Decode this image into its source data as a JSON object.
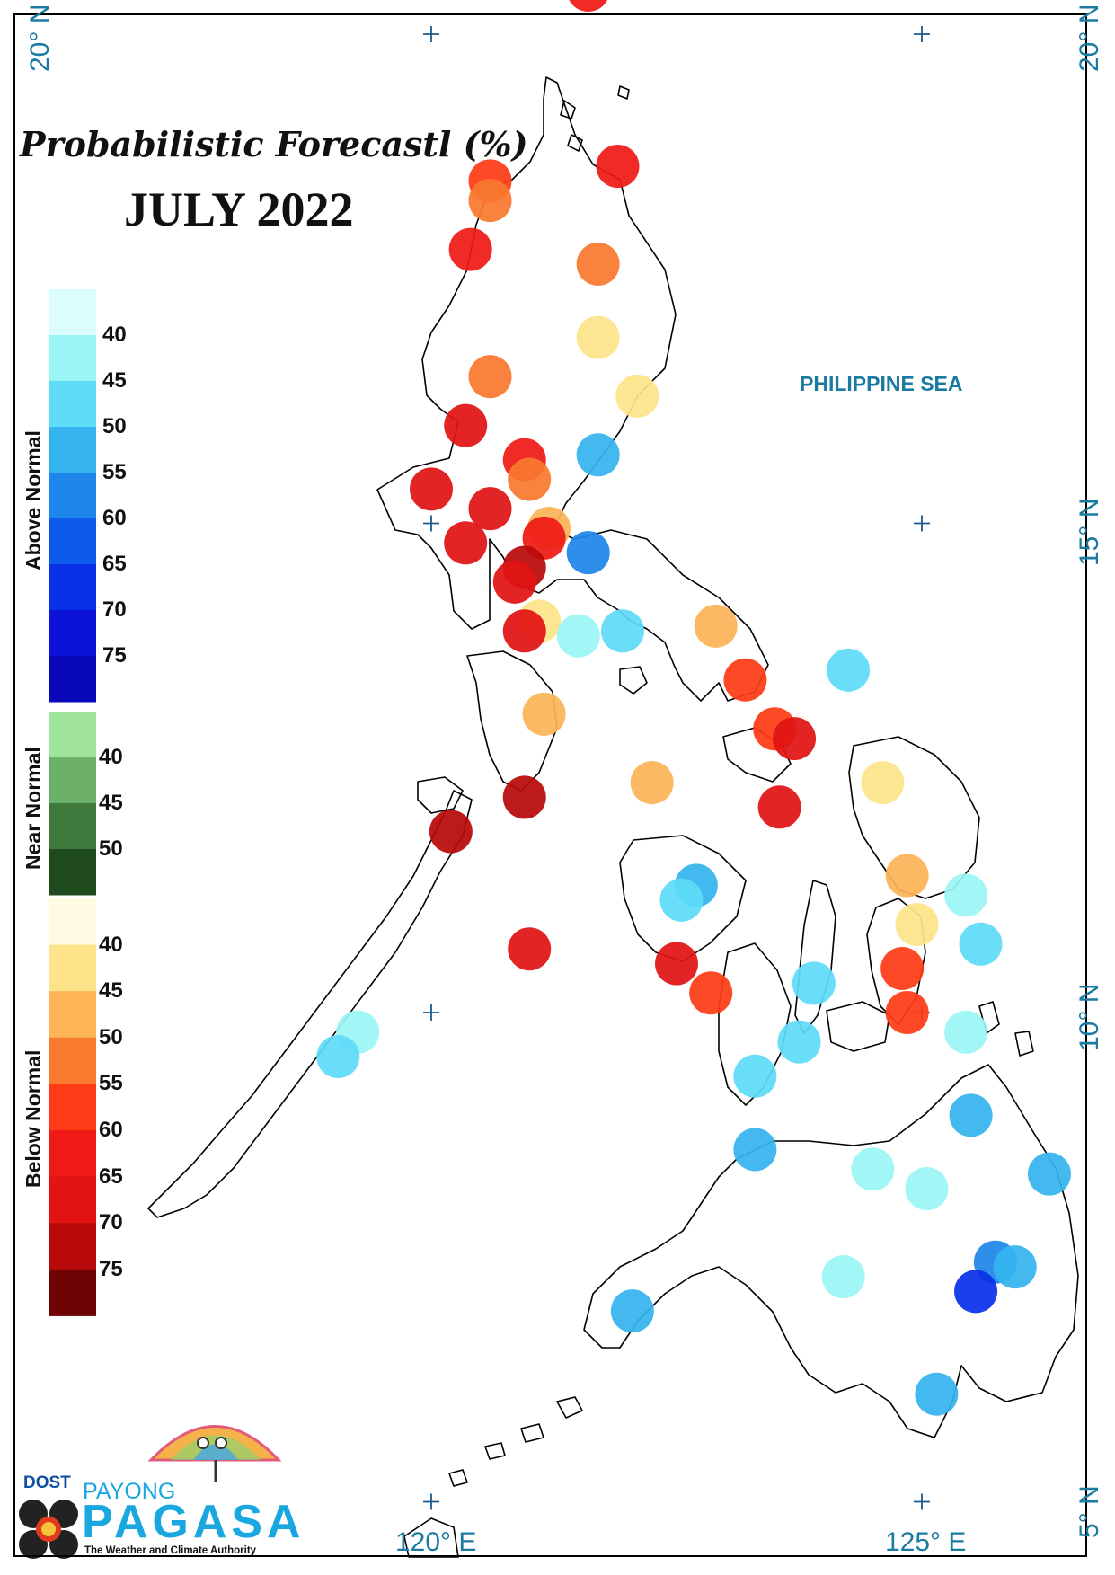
{
  "title": "Probabilistic Forecastl (%)",
  "subtitle": "JULY 2022",
  "sea_label": "PHILIPPINE SEA",
  "axes": {
    "lon_labels": [
      "120° E",
      "125° E"
    ],
    "lat_labels": [
      "20° N",
      "15° N",
      "10° N",
      "5° N"
    ]
  },
  "legend": {
    "above_normal": {
      "label": "Above Normal",
      "ticks": [
        "40",
        "45",
        "50",
        "55",
        "60",
        "65",
        "70",
        "75"
      ],
      "colors": [
        "#dcfdfd",
        "#9bf5f5",
        "#5fdcf7",
        "#35b4ef",
        "#1e86ea",
        "#0c5bea",
        "#0a30e8",
        "#0c12d8",
        "#0808b8"
      ]
    },
    "near_normal": {
      "label": "Near Normal",
      "ticks": [
        "40",
        "45",
        "50"
      ],
      "colors": [
        "#9fe49a",
        "#6cb06a",
        "#3f7a3c",
        "#1f4a1d"
      ]
    },
    "below_normal": {
      "label": "Below Normal",
      "ticks": [
        "40",
        "45",
        "50",
        "55",
        "60",
        "65",
        "70",
        "75"
      ],
      "colors": [
        "#fffbe2",
        "#fde48a",
        "#fcb457",
        "#f97a2f",
        "#fe3b16",
        "#ef1a16",
        "#e11313",
        "#b80a0a",
        "#6e0404"
      ]
    }
  },
  "logo": {
    "org": "DOST",
    "brand_top": "PAYONG",
    "brand_main": "PAGASA",
    "tagline": "The Weather and Climate Authority"
  },
  "stations": [
    {
      "lon": 121.6,
      "lat": 20.45,
      "category": "below",
      "prob": 60
    },
    {
      "lon": 121.9,
      "lat": 18.65,
      "category": "below",
      "prob": 60
    },
    {
      "lon": 120.6,
      "lat": 18.5,
      "category": "below",
      "prob": 55
    },
    {
      "lon": 120.6,
      "lat": 18.3,
      "category": "below",
      "prob": 50
    },
    {
      "lon": 120.4,
      "lat": 17.8,
      "category": "below",
      "prob": 60
    },
    {
      "lon": 121.7,
      "lat": 17.65,
      "category": "below",
      "prob": 50
    },
    {
      "lon": 121.7,
      "lat": 16.9,
      "category": "below",
      "prob": 40
    },
    {
      "lon": 120.6,
      "lat": 16.5,
      "category": "below",
      "prob": 50
    },
    {
      "lon": 122.1,
      "lat": 16.3,
      "category": "below",
      "prob": 40
    },
    {
      "lon": 120.35,
      "lat": 16.0,
      "category": "below",
      "prob": 65
    },
    {
      "lon": 121.7,
      "lat": 15.7,
      "category": "above",
      "prob": 50
    },
    {
      "lon": 120.95,
      "lat": 15.65,
      "category": "below",
      "prob": 60
    },
    {
      "lon": 121.0,
      "lat": 15.45,
      "category": "below",
      "prob": 50
    },
    {
      "lon": 120.0,
      "lat": 15.35,
      "category": "below",
      "prob": 65
    },
    {
      "lon": 120.6,
      "lat": 15.15,
      "category": "below",
      "prob": 65
    },
    {
      "lon": 121.2,
      "lat": 14.95,
      "category": "below",
      "prob": 45
    },
    {
      "lon": 121.15,
      "lat": 14.85,
      "category": "below",
      "prob": 60
    },
    {
      "lon": 120.35,
      "lat": 14.8,
      "category": "below",
      "prob": 65
    },
    {
      "lon": 121.6,
      "lat": 14.7,
      "category": "above",
      "prob": 55
    },
    {
      "lon": 120.95,
      "lat": 14.55,
      "category": "below",
      "prob": 70
    },
    {
      "lon": 120.85,
      "lat": 14.4,
      "category": "below",
      "prob": 65
    },
    {
      "lon": 121.1,
      "lat": 14.0,
      "category": "below",
      "prob": 40
    },
    {
      "lon": 120.95,
      "lat": 13.9,
      "category": "below",
      "prob": 65
    },
    {
      "lon": 121.5,
      "lat": 13.85,
      "category": "above",
      "prob": 40
    },
    {
      "lon": 121.95,
      "lat": 13.9,
      "category": "above",
      "prob": 45
    },
    {
      "lon": 122.9,
      "lat": 13.95,
      "category": "below",
      "prob": 45
    },
    {
      "lon": 124.25,
      "lat": 13.5,
      "category": "above",
      "prob": 45
    },
    {
      "lon": 123.2,
      "lat": 13.4,
      "category": "below",
      "prob": 55
    },
    {
      "lon": 121.15,
      "lat": 13.05,
      "category": "below",
      "prob": 45
    },
    {
      "lon": 123.5,
      "lat": 12.9,
      "category": "below",
      "prob": 55
    },
    {
      "lon": 123.7,
      "lat": 12.8,
      "category": "below",
      "prob": 65
    },
    {
      "lon": 122.25,
      "lat": 12.35,
      "category": "below",
      "prob": 45
    },
    {
      "lon": 124.6,
      "lat": 12.35,
      "category": "below",
      "prob": 40
    },
    {
      "lon": 120.95,
      "lat": 12.2,
      "category": "below",
      "prob": 70
    },
    {
      "lon": 123.55,
      "lat": 12.1,
      "category": "below",
      "prob": 65
    },
    {
      "lon": 120.2,
      "lat": 11.85,
      "category": "below",
      "prob": 70
    },
    {
      "lon": 124.85,
      "lat": 11.4,
      "category": "below",
      "prob": 45
    },
    {
      "lon": 122.7,
      "lat": 11.3,
      "category": "above",
      "prob": 50
    },
    {
      "lon": 125.45,
      "lat": 11.2,
      "category": "above",
      "prob": 40
    },
    {
      "lon": 122.55,
      "lat": 11.15,
      "category": "above",
      "prob": 45
    },
    {
      "lon": 124.95,
      "lat": 10.9,
      "category": "below",
      "prob": 40
    },
    {
      "lon": 125.6,
      "lat": 10.7,
      "category": "above",
      "prob": 45
    },
    {
      "lon": 121.0,
      "lat": 10.65,
      "category": "below",
      "prob": 65
    },
    {
      "lon": 122.5,
      "lat": 10.5,
      "category": "below",
      "prob": 65
    },
    {
      "lon": 124.8,
      "lat": 10.45,
      "category": "below",
      "prob": 55
    },
    {
      "lon": 122.85,
      "lat": 10.2,
      "category": "below",
      "prob": 55
    },
    {
      "lon": 123.9,
      "lat": 10.3,
      "category": "above",
      "prob": 45
    },
    {
      "lon": 124.85,
      "lat": 10.0,
      "category": "below",
      "prob": 55
    },
    {
      "lon": 119.25,
      "lat": 9.8,
      "category": "above",
      "prob": 40
    },
    {
      "lon": 125.45,
      "lat": 9.8,
      "category": "above",
      "prob": 40
    },
    {
      "lon": 123.75,
      "lat": 9.7,
      "category": "above",
      "prob": 45
    },
    {
      "lon": 119.05,
      "lat": 9.55,
      "category": "above",
      "prob": 45
    },
    {
      "lon": 123.3,
      "lat": 9.35,
      "category": "above",
      "prob": 45
    },
    {
      "lon": 125.5,
      "lat": 8.95,
      "category": "above",
      "prob": 50
    },
    {
      "lon": 123.3,
      "lat": 8.6,
      "category": "above",
      "prob": 50
    },
    {
      "lon": 124.5,
      "lat": 8.4,
      "category": "above",
      "prob": 40
    },
    {
      "lon": 126.3,
      "lat": 8.35,
      "category": "above",
      "prob": 50
    },
    {
      "lon": 125.05,
      "lat": 8.2,
      "category": "above",
      "prob": 40
    },
    {
      "lon": 125.75,
      "lat": 7.45,
      "category": "above",
      "prob": 55
    },
    {
      "lon": 125.95,
      "lat": 7.4,
      "category": "above",
      "prob": 50
    },
    {
      "lon": 124.2,
      "lat": 7.3,
      "category": "above",
      "prob": 40
    },
    {
      "lon": 125.55,
      "lat": 7.15,
      "category": "above",
      "prob": 65
    },
    {
      "lon": 122.05,
      "lat": 6.95,
      "category": "above",
      "prob": 50
    },
    {
      "lon": 125.15,
      "lat": 6.1,
      "category": "above",
      "prob": 50
    }
  ]
}
